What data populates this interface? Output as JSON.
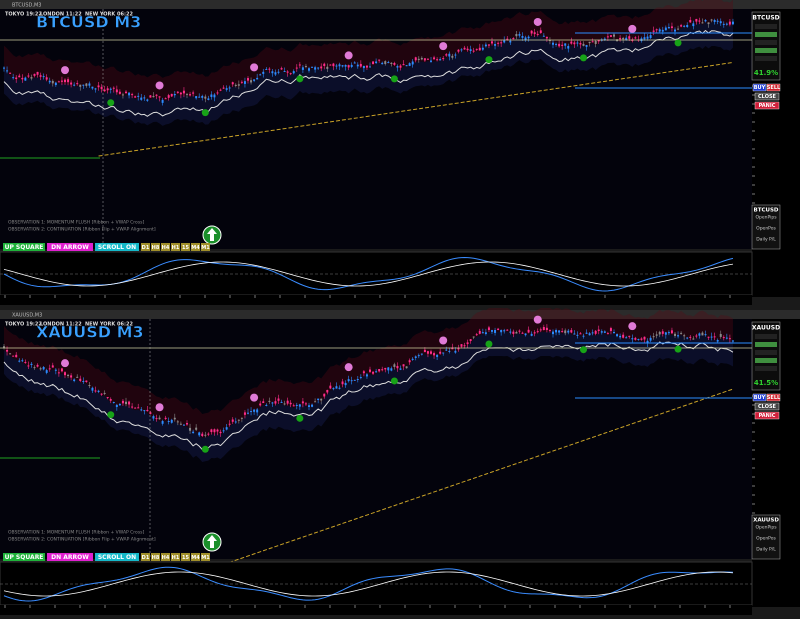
{
  "panels": [
    {
      "window_title": "BTCUSD,M3",
      "sessions": [
        "TOKYO 19:22",
        "LONDON 11:22",
        "NEW YORK 06:22"
      ],
      "symbol_title": "BTCUSD M3",
      "observations": [
        "OBSERVATION 1: MOMENTUM FLUSH [Ribbon + VWAP Cross]",
        "OBSERVATION 2: CONTINUATION [Ribbon Flip + VWAP Alignment]"
      ],
      "buttons": [
        "UP SQUARE",
        "DN ARROW",
        "SCROLL ON"
      ],
      "timeframes": [
        "D1",
        "H8",
        "H4",
        "H1",
        "15",
        "M4",
        "M1"
      ],
      "side": {
        "symbol": "BTCUSD",
        "ratio": "41.9%",
        "buy": "BUY",
        "sell": "SELL",
        "close": "CLOSE",
        "panic": "PANIC",
        "info_symbol": "BTCUSD",
        "open_pips": "OpenPips",
        "open_pos": "OpenPos",
        "daily_pl": "Daily P/L"
      }
    },
    {
      "window_title": "XAUUSD,M3",
      "sessions": [
        "TOKYO 19:22",
        "LONDON 11:22",
        "NEW YORK 06:22"
      ],
      "symbol_title": "XAUUSD M3",
      "observations": [
        "OBSERVATION 1: MOMENTUM FLUSH [Ribbon + VWAP Cross]",
        "OBSERVATION 2: CONTINUATION [Ribbon Flip + VWAP Alignment]"
      ],
      "buttons": [
        "UP SQUARE",
        "DN ARROW",
        "SCROLL ON"
      ],
      "timeframes": [
        "D1",
        "H8",
        "H4",
        "H1",
        "15",
        "M4",
        "M1"
      ],
      "side": {
        "symbol": "XAUUSD",
        "ratio": "41.5%",
        "buy": "BUY",
        "sell": "SELL",
        "close": "CLOSE",
        "panic": "PANIC",
        "info_symbol": "XAUUSD",
        "open_pips": "OpenPips",
        "open_pos": "OpenPos",
        "daily_pl": "Daily P/L"
      }
    }
  ]
}
